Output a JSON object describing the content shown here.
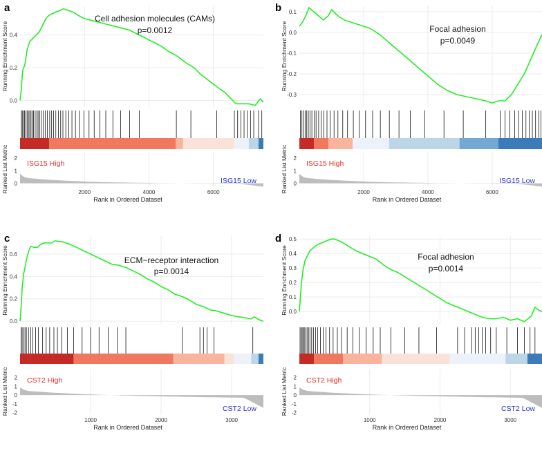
{
  "figure": {
    "ylabel_es": "Running Enrichment Score",
    "ylabel_metric": "Ranked List Metric",
    "xlabel": "Rank in Ordered Dataset"
  },
  "colors": {
    "es_line": "#22ee22",
    "high_label": "#e8302a",
    "low_label": "#2a35c8",
    "metric_fill": "#bdbdbd",
    "gradient_red_dark": "#c42a26",
    "gradient_red": "#f0785e",
    "gradient_light_red": "#f8b49c",
    "gradient_pale_red": "#fbe2d8",
    "gradient_pale_blue": "#edf2fa",
    "gradient_light_blue": "#bcd6e8",
    "gradient_blue": "#74a9d4",
    "gradient_dark_blue": "#3a7bb8"
  },
  "chart_data": [
    {
      "id": "a",
      "letter": "a",
      "type": "line",
      "title": "Cell adhesion molecules (CAMs)",
      "pvalue": "p=0.0012",
      "high_label": "ISG15 High",
      "low_label": "ISG15 Low",
      "xlim": [
        0,
        7550
      ],
      "xticks": [
        2000,
        4000,
        6000
      ],
      "ylim": [
        -0.04,
        0.58
      ],
      "yticks": [
        0.0,
        0.2,
        0.4
      ],
      "ytick_labels": [
        "0.0",
        "0.2",
        "0.4"
      ],
      "metric_ylim": [
        -0.25,
        2.5
      ],
      "metric_yticks": [
        0,
        1,
        2
      ],
      "es_points": [
        [
          0,
          0
        ],
        [
          30,
          0.05
        ],
        [
          80,
          0.18
        ],
        [
          150,
          0.22
        ],
        [
          220,
          0.31
        ],
        [
          300,
          0.36
        ],
        [
          400,
          0.38
        ],
        [
          500,
          0.4
        ],
        [
          600,
          0.42
        ],
        [
          700,
          0.46
        ],
        [
          800,
          0.5
        ],
        [
          900,
          0.52
        ],
        [
          1000,
          0.53
        ],
        [
          1100,
          0.54
        ],
        [
          1250,
          0.55
        ],
        [
          1350,
          0.56
        ],
        [
          1500,
          0.55
        ],
        [
          1650,
          0.54
        ],
        [
          1800,
          0.52
        ],
        [
          2000,
          0.5
        ],
        [
          2200,
          0.49
        ],
        [
          2400,
          0.48
        ],
        [
          2600,
          0.47
        ],
        [
          2800,
          0.46
        ],
        [
          3000,
          0.45
        ],
        [
          3200,
          0.44
        ],
        [
          3400,
          0.43
        ],
        [
          3600,
          0.41
        ],
        [
          3800,
          0.39
        ],
        [
          4000,
          0.37
        ],
        [
          4200,
          0.35
        ],
        [
          4400,
          0.33
        ],
        [
          4600,
          0.3
        ],
        [
          4800,
          0.28
        ],
        [
          4950,
          0.26
        ],
        [
          5150,
          0.23
        ],
        [
          5400,
          0.2
        ],
        [
          5600,
          0.16
        ],
        [
          5800,
          0.13
        ],
        [
          6000,
          0.1
        ],
        [
          6200,
          0.07
        ],
        [
          6350,
          0.05
        ],
        [
          6500,
          0.02
        ],
        [
          6700,
          -0.02
        ],
        [
          6900,
          -0.02
        ],
        [
          7100,
          -0.02
        ],
        [
          7300,
          -0.03
        ],
        [
          7450,
          0.01
        ],
        [
          7550,
          -0.01
        ]
      ],
      "hits": [
        40,
        70,
        110,
        140,
        180,
        220,
        260,
        300,
        340,
        380,
        420,
        470,
        520,
        560,
        610,
        660,
        720,
        780,
        850,
        920,
        980,
        1040,
        1110,
        1190,
        1260,
        1330,
        1420,
        1510,
        1610,
        1720,
        1840,
        1980,
        2140,
        2300,
        2480,
        2660,
        2880,
        3120,
        3400,
        3700,
        4850,
        5300,
        6100,
        6650,
        6750,
        6850,
        6950,
        7050,
        7150,
        7250,
        7400,
        7500
      ],
      "bar_segments": [
        [
          0,
          0.02,
          "gradient_red_dark"
        ],
        [
          0.02,
          0.12,
          "gradient_red_dark"
        ],
        [
          0.12,
          0.64,
          "gradient_red"
        ],
        [
          0.64,
          0.67,
          "gradient_light_red"
        ],
        [
          0.67,
          0.78,
          "gradient_pale_red"
        ],
        [
          0.78,
          0.88,
          "gradient_pale_red"
        ],
        [
          0.88,
          0.94,
          "gradient_pale_blue"
        ],
        [
          0.94,
          0.98,
          "gradient_light_blue"
        ],
        [
          0.98,
          1.0,
          "gradient_dark_blue"
        ]
      ],
      "metric_shape": "long"
    },
    {
      "id": "b",
      "letter": "b",
      "type": "line",
      "title": "Focal adhesion",
      "pvalue": "p=0.0049",
      "high_label": "ISG15 High",
      "low_label": "ISG15 Low",
      "xlim": [
        0,
        7550
      ],
      "xticks": [
        2000,
        4000,
        6000
      ],
      "ylim": [
        -0.36,
        0.13
      ],
      "yticks": [
        0.1,
        0.0,
        -0.1,
        -0.2,
        -0.3
      ],
      "ytick_labels": [
        "0.1",
        "0.0",
        "-0.1",
        "-0.2",
        "-0.3"
      ],
      "metric_ylim": [
        -0.25,
        2.5
      ],
      "metric_yticks": [
        0,
        1,
        2
      ],
      "es_points": [
        [
          0,
          0.03
        ],
        [
          100,
          0.05
        ],
        [
          200,
          0.08
        ],
        [
          300,
          0.12
        ],
        [
          450,
          0.1
        ],
        [
          600,
          0.08
        ],
        [
          750,
          0.06
        ],
        [
          900,
          0.08
        ],
        [
          1000,
          0.11
        ],
        [
          1200,
          0.08
        ],
        [
          1400,
          0.06
        ],
        [
          1600,
          0.05
        ],
        [
          1800,
          0.04
        ],
        [
          2000,
          0.03
        ],
        [
          2200,
          0.02
        ],
        [
          2500,
          -0.01
        ],
        [
          2800,
          -0.05
        ],
        [
          3100,
          -0.09
        ],
        [
          3400,
          -0.13
        ],
        [
          3700,
          -0.17
        ],
        [
          4000,
          -0.21
        ],
        [
          4300,
          -0.25
        ],
        [
          4600,
          -0.28
        ],
        [
          4900,
          -0.3
        ],
        [
          5200,
          -0.31
        ],
        [
          5500,
          -0.32
        ],
        [
          5800,
          -0.33
        ],
        [
          6000,
          -0.34
        ],
        [
          6200,
          -0.33
        ],
        [
          6400,
          -0.33
        ],
        [
          6600,
          -0.3
        ],
        [
          6800,
          -0.25
        ],
        [
          7000,
          -0.2
        ],
        [
          7200,
          -0.13
        ],
        [
          7400,
          -0.06
        ],
        [
          7550,
          -0.01
        ]
      ],
      "hits": [
        30,
        80,
        130,
        180,
        230,
        280,
        330,
        390,
        460,
        520,
        600,
        680,
        760,
        860,
        960,
        1080,
        1200,
        1350,
        1500,
        1680,
        1860,
        2060,
        2280,
        2520,
        2800,
        3100,
        3450,
        3900,
        4500,
        5100,
        5800,
        6250,
        6400,
        6550,
        6700,
        6820,
        6940,
        7050,
        7150,
        7250,
        7350,
        7450,
        7520
      ],
      "bar_segments": [
        [
          0,
          0.06,
          "gradient_red_dark"
        ],
        [
          0,
          0.06,
          "gradient_red_dark"
        ],
        [
          0.06,
          0.12,
          "gradient_red"
        ],
        [
          0.12,
          0.22,
          "gradient_light_red"
        ],
        [
          0.22,
          0.37,
          "gradient_pale_blue"
        ],
        [
          0.37,
          0.66,
          "gradient_light_blue"
        ],
        [
          0.66,
          0.82,
          "gradient_blue"
        ],
        [
          0.82,
          1.0,
          "gradient_dark_blue"
        ]
      ],
      "metric_shape": "long"
    },
    {
      "id": "c",
      "letter": "c",
      "type": "line",
      "title": "ECM−receptor interaction",
      "pvalue": "p=0.0014",
      "high_label": "CST2 High",
      "low_label": "CST2 Low",
      "xlim": [
        0,
        3450
      ],
      "xticks": [
        1000,
        2000,
        3000
      ],
      "ylim": [
        -0.03,
        0.76
      ],
      "yticks": [
        0.0,
        0.2,
        0.4,
        0.6
      ],
      "ytick_labels": [
        "0.0",
        "0.2",
        "0.4",
        "0.6"
      ],
      "metric_ylim": [
        -2.2,
        3.0
      ],
      "metric_yticks": [
        2,
        1,
        0,
        -1,
        -2
      ],
      "es_points": [
        [
          0,
          0
        ],
        [
          15,
          0.12
        ],
        [
          30,
          0.3
        ],
        [
          50,
          0.42
        ],
        [
          70,
          0.48
        ],
        [
          90,
          0.55
        ],
        [
          120,
          0.62
        ],
        [
          150,
          0.67
        ],
        [
          200,
          0.66
        ],
        [
          250,
          0.66
        ],
        [
          300,
          0.69
        ],
        [
          350,
          0.7
        ],
        [
          400,
          0.7
        ],
        [
          450,
          0.7
        ],
        [
          500,
          0.72
        ],
        [
          550,
          0.71
        ],
        [
          600,
          0.71
        ],
        [
          700,
          0.69
        ],
        [
          800,
          0.66
        ],
        [
          900,
          0.63
        ],
        [
          1000,
          0.6
        ],
        [
          1100,
          0.57
        ],
        [
          1200,
          0.54
        ],
        [
          1300,
          0.51
        ],
        [
          1400,
          0.5
        ],
        [
          1500,
          0.48
        ],
        [
          1600,
          0.45
        ],
        [
          1700,
          0.42
        ],
        [
          1800,
          0.38
        ],
        [
          1900,
          0.35
        ],
        [
          2000,
          0.31
        ],
        [
          2100,
          0.28
        ],
        [
          2200,
          0.24
        ],
        [
          2300,
          0.22
        ],
        [
          2400,
          0.19
        ],
        [
          2500,
          0.15
        ],
        [
          2600,
          0.13
        ],
        [
          2700,
          0.1
        ],
        [
          2800,
          0.09
        ],
        [
          2900,
          0.07
        ],
        [
          3000,
          0.05
        ],
        [
          3100,
          0.04
        ],
        [
          3200,
          0.03
        ],
        [
          3280,
          0.02
        ],
        [
          3320,
          0.04
        ],
        [
          3400,
          0.01
        ],
        [
          3450,
          0.0
        ]
      ],
      "hits": [
        15,
        30,
        50,
        70,
        90,
        120,
        150,
        180,
        220,
        260,
        320,
        370,
        420,
        480,
        530,
        590,
        670,
        760,
        880,
        1000,
        1120,
        1250,
        1380,
        1500,
        2300,
        2550,
        2600,
        2650,
        2750,
        3300
      ],
      "bar_segments": [
        [
          0,
          0.04,
          "gradient_red_dark"
        ],
        [
          0.04,
          0.22,
          "gradient_red_dark"
        ],
        [
          0.22,
          0.63,
          "gradient_red"
        ],
        [
          0.63,
          0.84,
          "gradient_light_red"
        ],
        [
          0.84,
          0.88,
          "gradient_pale_red"
        ],
        [
          0.88,
          0.95,
          "gradient_pale_blue"
        ],
        [
          0.95,
          0.98,
          "gradient_light_blue"
        ],
        [
          0.98,
          1.0,
          "gradient_dark_blue"
        ]
      ],
      "metric_shape": "short"
    },
    {
      "id": "d",
      "letter": "d",
      "type": "line",
      "title": "Focal adhesion",
      "pvalue": "p=0.0014",
      "high_label": "CST2 High",
      "low_label": "CST2 Low",
      "xlim": [
        0,
        3450
      ],
      "xticks": [
        1000,
        2000,
        3000
      ],
      "ylim": [
        -0.09,
        0.52
      ],
      "yticks": [
        0.5,
        0.4,
        0.3,
        0.2,
        0.1,
        0.0
      ],
      "ytick_labels": [
        "0.5",
        "0.4",
        "0.3",
        "0.2",
        "0.1",
        "0.0"
      ],
      "metric_ylim": [
        -2.2,
        3.0
      ],
      "metric_yticks": [
        2,
        1,
        0,
        -1,
        -2
      ],
      "es_points": [
        [
          0,
          0
        ],
        [
          15,
          0.1
        ],
        [
          30,
          0.2
        ],
        [
          50,
          0.28
        ],
        [
          80,
          0.35
        ],
        [
          110,
          0.38
        ],
        [
          150,
          0.42
        ],
        [
          200,
          0.44
        ],
        [
          250,
          0.46
        ],
        [
          300,
          0.47
        ],
        [
          350,
          0.48
        ],
        [
          400,
          0.49
        ],
        [
          450,
          0.5
        ],
        [
          500,
          0.5
        ],
        [
          550,
          0.49
        ],
        [
          600,
          0.48
        ],
        [
          700,
          0.45
        ],
        [
          800,
          0.42
        ],
        [
          900,
          0.4
        ],
        [
          1000,
          0.38
        ],
        [
          1100,
          0.36
        ],
        [
          1200,
          0.32
        ],
        [
          1300,
          0.29
        ],
        [
          1400,
          0.27
        ],
        [
          1500,
          0.24
        ],
        [
          1600,
          0.21
        ],
        [
          1700,
          0.18
        ],
        [
          1800,
          0.15
        ],
        [
          1900,
          0.12
        ],
        [
          2000,
          0.09
        ],
        [
          2100,
          0.06
        ],
        [
          2200,
          0.04
        ],
        [
          2300,
          0.02
        ],
        [
          2400,
          0.0
        ],
        [
          2500,
          -0.02
        ],
        [
          2600,
          -0.04
        ],
        [
          2700,
          -0.05
        ],
        [
          2800,
          -0.05
        ],
        [
          2900,
          -0.04
        ],
        [
          3000,
          -0.06
        ],
        [
          3100,
          -0.05
        ],
        [
          3200,
          -0.07
        ],
        [
          3300,
          -0.03
        ],
        [
          3350,
          0.03
        ],
        [
          3400,
          0.01
        ],
        [
          3450,
          0.0
        ]
      ],
      "hits": [
        10,
        25,
        40,
        55,
        70,
        90,
        110,
        130,
        150,
        175,
        200,
        230,
        260,
        300,
        340,
        380,
        430,
        480,
        540,
        600,
        680,
        760,
        850,
        950,
        1050,
        1150,
        1300,
        1500,
        1700,
        1950,
        2250,
        2350,
        2450,
        2500,
        2550,
        2600,
        2650,
        2720,
        2800,
        2950,
        3100,
        3200,
        3280,
        3350
      ],
      "bar_segments": [
        [
          0,
          0.06,
          "gradient_red_dark"
        ],
        [
          0.06,
          0.18,
          "gradient_red"
        ],
        [
          0.18,
          0.34,
          "gradient_light_red"
        ],
        [
          0.34,
          0.62,
          "gradient_pale_red"
        ],
        [
          0.62,
          0.85,
          "gradient_pale_blue"
        ],
        [
          0.85,
          0.94,
          "gradient_light_blue"
        ],
        [
          0.94,
          1.0,
          "gradient_dark_blue"
        ]
      ],
      "metric_shape": "short"
    }
  ]
}
